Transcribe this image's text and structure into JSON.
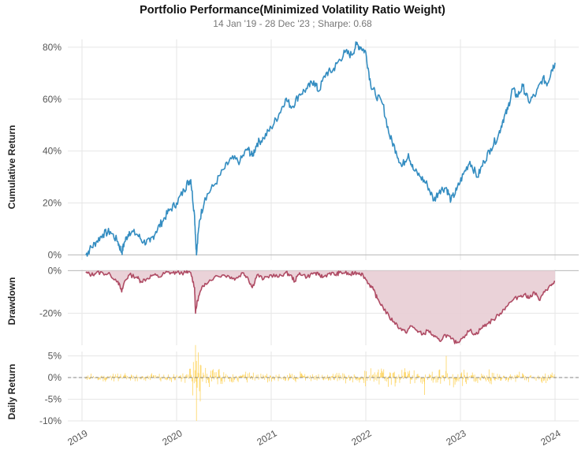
{
  "chart_data": [
    {
      "type": "line",
      "title": "Portfolio Performance(Minimized Volatility Ratio Weight)",
      "subtitle": "14 Jan '19 - 28 Dec '23 ;  Sharpe: 0.68",
      "ylabel": "Cumulative Return",
      "ylim": [
        -2,
        83
      ],
      "yticks": [
        0,
        20,
        40,
        60,
        80
      ],
      "ytick_labels": [
        "0%",
        "20%",
        "40%",
        "60%",
        "80%"
      ],
      "xlim": [
        2018.85,
        2024.25
      ],
      "grid": true,
      "color": "#348dc1",
      "series": [
        {
          "x": [
            2019.04,
            2019.08,
            2019.15,
            2019.22,
            2019.3,
            2019.38,
            2019.42,
            2019.45,
            2019.5,
            2019.58,
            2019.65,
            2019.72,
            2019.78,
            2019.85,
            2019.92,
            2020.0,
            2020.08,
            2020.12,
            2020.15,
            2020.19,
            2020.21,
            2020.24,
            2020.3,
            2020.4,
            2020.5,
            2020.58,
            2020.67,
            2020.75,
            2020.8,
            2020.85,
            2020.92,
            2021.0,
            2021.08,
            2021.15,
            2021.22,
            2021.3,
            2021.38,
            2021.45,
            2021.5,
            2021.58,
            2021.65,
            2021.7,
            2021.78,
            2021.85,
            2021.9,
            2021.95,
            2022.0,
            2022.05,
            2022.1,
            2022.18,
            2022.25,
            2022.32,
            2022.38,
            2022.45,
            2022.5,
            2022.58,
            2022.65,
            2022.72,
            2022.78,
            2022.85,
            2022.9,
            2022.96,
            2023.03,
            2023.1,
            2023.18,
            2023.25,
            2023.32,
            2023.4,
            2023.45,
            2023.5,
            2023.55,
            2023.6,
            2023.66,
            2023.72,
            2023.8,
            2023.87,
            2023.92,
            2023.96,
            2024.0
          ],
          "y": [
            0,
            2,
            5,
            8,
            9,
            5,
            1,
            5,
            9,
            8,
            5,
            5,
            9,
            13,
            17,
            20,
            25,
            28,
            29,
            15,
            0,
            13,
            22,
            27,
            33,
            37,
            36,
            41,
            38,
            43,
            45,
            49,
            54,
            60,
            57,
            62,
            64,
            67,
            63,
            70,
            71,
            74,
            78,
            77,
            81,
            80,
            78,
            66,
            62,
            58,
            46,
            40,
            34,
            39,
            33,
            30,
            27,
            21,
            25,
            26,
            21,
            25,
            31,
            36,
            30,
            36,
            41,
            46,
            52,
            56,
            64,
            61,
            65,
            59,
            62,
            68,
            66,
            71,
            74
          ]
        }
      ]
    },
    {
      "type": "area",
      "ylabel": "Drawdown",
      "ylim": [
        -35,
        0.5
      ],
      "yticks": [
        0,
        -20
      ],
      "ytick_labels": [
        "0%",
        "-20%"
      ],
      "grid": true,
      "color": "#af4b64",
      "fill": "#e8cdd4",
      "series": [
        {
          "x": [
            2019.04,
            2019.1,
            2019.15,
            2019.22,
            2019.3,
            2019.38,
            2019.42,
            2019.45,
            2019.5,
            2019.58,
            2019.62,
            2019.68,
            2019.75,
            2019.82,
            2019.88,
            2019.94,
            2020.0,
            2020.1,
            2020.15,
            2020.19,
            2020.2,
            2020.22,
            2020.26,
            2020.3,
            2020.4,
            2020.5,
            2020.58,
            2020.62,
            2020.7,
            2020.75,
            2020.8,
            2020.85,
            2020.92,
            2021.0,
            2021.08,
            2021.15,
            2021.2,
            2021.25,
            2021.3,
            2021.38,
            2021.45,
            2021.5,
            2021.55,
            2021.62,
            2021.68,
            2021.72,
            2021.78,
            2021.84,
            2021.88,
            2021.93,
            2021.97,
            2022.03,
            2022.08,
            2022.12,
            2022.18,
            2022.25,
            2022.3,
            2022.36,
            2022.42,
            2022.48,
            2022.54,
            2022.6,
            2022.66,
            2022.72,
            2022.78,
            2022.84,
            2022.9,
            2022.96,
            2023.03,
            2023.1,
            2023.16,
            2023.22,
            2023.28,
            2023.35,
            2023.42,
            2023.48,
            2023.55,
            2023.62,
            2023.68,
            2023.72,
            2023.78,
            2023.84,
            2023.9,
            2023.96,
            2024.0
          ],
          "y": [
            -1,
            -2,
            -1,
            -1,
            -2,
            -5,
            -10,
            -5,
            -2,
            -3,
            -5,
            -4,
            -2,
            -3,
            -1,
            -1,
            -1,
            -1,
            -1,
            -8,
            -20,
            -14,
            -9,
            -6,
            -3,
            -2,
            -3,
            -4,
            -1,
            -3,
            -8,
            -2,
            -4,
            -2,
            -3,
            -1,
            -2,
            -5,
            -1,
            -3,
            -1,
            -2,
            -3,
            -1,
            -2,
            -1,
            -1,
            -2,
            -1,
            -1,
            -2,
            -6,
            -9,
            -13,
            -17,
            -22,
            -24,
            -27,
            -29,
            -26,
            -28,
            -30,
            -28,
            -31,
            -33,
            -30,
            -32,
            -34,
            -31,
            -28,
            -30,
            -27,
            -25,
            -23,
            -20,
            -17,
            -14,
            -12,
            -11,
            -13,
            -10,
            -14,
            -9,
            -7,
            -5
          ]
        }
      ]
    },
    {
      "type": "bar",
      "ylabel": "Daily Return",
      "ylim": [
        -10,
        6
      ],
      "yticks": [
        5,
        0,
        -5,
        -10
      ],
      "ytick_labels": [
        "5%",
        "0%",
        "-5%",
        "-10%"
      ],
      "grid": true,
      "color": "#fecf4b",
      "baseline": 0,
      "x_start": 2019.04,
      "x_end": 2024.0,
      "amplitude_envelope": [
        {
          "x": 2019.04,
          "a": 1.2
        },
        {
          "x": 2019.9,
          "a": 1.0
        },
        {
          "x": 2020.12,
          "a": 1.5
        },
        {
          "x": 2020.2,
          "a": 7.5
        },
        {
          "x": 2020.3,
          "a": 3.5
        },
        {
          "x": 2020.5,
          "a": 1.8
        },
        {
          "x": 2021.0,
          "a": 1.4
        },
        {
          "x": 2021.9,
          "a": 1.5
        },
        {
          "x": 2022.1,
          "a": 2.8
        },
        {
          "x": 2022.5,
          "a": 2.6
        },
        {
          "x": 2022.8,
          "a": 3.0
        },
        {
          "x": 2023.2,
          "a": 2.2
        },
        {
          "x": 2023.6,
          "a": 1.6
        },
        {
          "x": 2024.0,
          "a": 1.4
        }
      ],
      "extremes": [
        {
          "x": 2020.2,
          "y": 7.5
        },
        {
          "x": 2020.21,
          "y": -10.0
        },
        {
          "x": 2020.23,
          "y": 5.8
        },
        {
          "x": 2020.25,
          "y": -5.5
        },
        {
          "x": 2022.85,
          "y": 5.0
        },
        {
          "x": 2022.62,
          "y": -4.0
        }
      ]
    }
  ],
  "x_axis": {
    "ticks": [
      2019,
      2020,
      2021,
      2022,
      2023,
      2024
    ],
    "labels": [
      "2019",
      "2020",
      "2021",
      "2022",
      "2023",
      "2024"
    ]
  }
}
